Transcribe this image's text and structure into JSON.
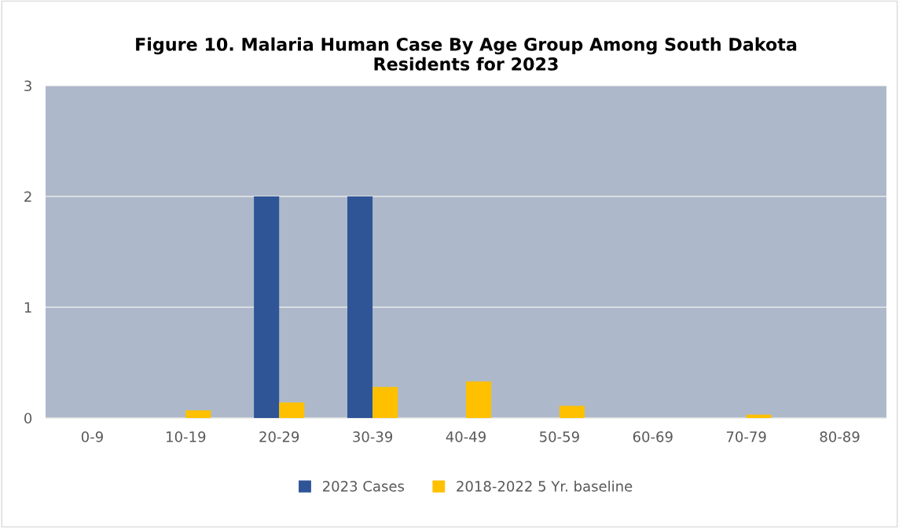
{
  "chart_data": {
    "type": "bar",
    "title": "Figure 10. Malaria Human Case By Age Group Among South Dakota\nResidents for 2023",
    "categories": [
      "0-9",
      "10-19",
      "20-29",
      "30-39",
      "40-49",
      "50-59",
      "60-69",
      "70-79",
      "80-89"
    ],
    "series": [
      {
        "name": "2023 Cases",
        "color": "#2f5597",
        "values": [
          0,
          0,
          2,
          2,
          0,
          0,
          0,
          0,
          0
        ]
      },
      {
        "name": "2018-2022 5 Yr. baseline",
        "color": "#ffc000",
        "values": [
          0,
          0.07,
          0.14,
          0.28,
          0.33,
          0.11,
          0,
          0.03,
          0
        ]
      }
    ],
    "ylim": [
      0,
      3
    ],
    "yticks": [
      0,
      1,
      2,
      3
    ],
    "grid": "y",
    "legend": "bottom"
  }
}
